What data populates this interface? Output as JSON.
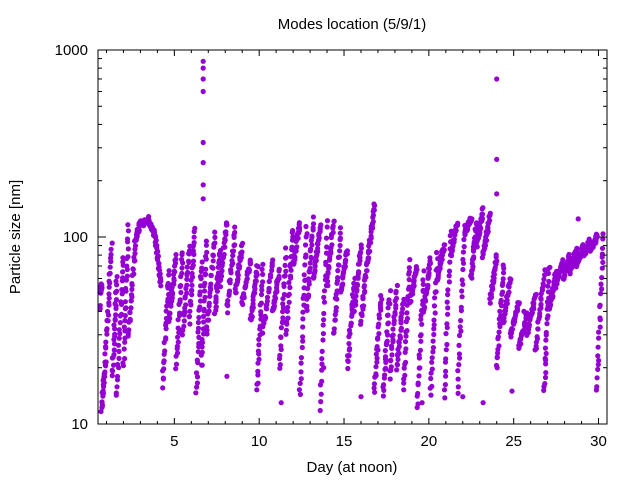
{
  "chart_data": {
    "type": "scatter",
    "title": "Modes location (5/9/1)",
    "xlabel": "Day (at noon)",
    "ylabel": "Particle size [nm]",
    "xlim": [
      0.5,
      30.5
    ],
    "ylim": [
      10,
      1000
    ],
    "yscale": "log",
    "grid": false,
    "legend": "none",
    "marker_color": "#9400d3",
    "x_ticks": [
      5,
      10,
      15,
      20,
      25,
      30
    ],
    "x_tick_labels": [
      "5",
      "10",
      "15",
      "20",
      "25",
      "30"
    ],
    "y_ticks": [
      10,
      100,
      1000
    ],
    "y_tick_labels": [
      "10",
      "100",
      "1000"
    ],
    "segments": [
      [
        0.5,
        30,
        0.62,
        45
      ],
      [
        0.62,
        50,
        0.7,
        55
      ],
      [
        0.7,
        12,
        0.95,
        22
      ],
      [
        0.95,
        24,
        1.3,
        90
      ],
      [
        1.35,
        18,
        1.6,
        60
      ],
      [
        1.6,
        14,
        2.0,
        80
      ],
      [
        2.0,
        20,
        2.3,
        115
      ],
      [
        2.3,
        30,
        2.7,
        90
      ],
      [
        2.7,
        95,
        3.0,
        120
      ],
      [
        3.0,
        115,
        3.5,
        125
      ],
      [
        3.5,
        120,
        3.9,
        100
      ],
      [
        3.9,
        95,
        4.2,
        55
      ],
      [
        4.3,
        16,
        4.7,
        65
      ],
      [
        4.7,
        35,
        5.1,
        80
      ],
      [
        5.1,
        20,
        5.5,
        85
      ],
      [
        5.5,
        30,
        5.9,
        90
      ],
      [
        5.9,
        35,
        6.2,
        110
      ],
      [
        6.3,
        15,
        6.6,
        75
      ],
      [
        6.6,
        20,
        6.9,
        95
      ],
      [
        6.9,
        30,
        7.4,
        105
      ],
      [
        7.4,
        40,
        7.7,
        85
      ],
      [
        7.7,
        55,
        8.1,
        120
      ],
      [
        8.1,
        40,
        8.6,
        110
      ],
      [
        8.6,
        50,
        9.0,
        90
      ],
      [
        9.0,
        45,
        9.5,
        75
      ],
      [
        9.5,
        35,
        9.9,
        70
      ],
      [
        9.9,
        15,
        10.2,
        70
      ],
      [
        10.2,
        30,
        10.8,
        75
      ],
      [
        10.8,
        40,
        11.2,
        65
      ],
      [
        11.2,
        20,
        11.6,
        85
      ],
      [
        11.6,
        30,
        12.0,
        110
      ],
      [
        12.0,
        70,
        12.4,
        120
      ],
      [
        12.4,
        14,
        12.8,
        115
      ],
      [
        12.8,
        40,
        13.2,
        125
      ],
      [
        13.2,
        60,
        13.6,
        115
      ],
      [
        13.6,
        12,
        14.0,
        120
      ],
      [
        14.0,
        55,
        14.4,
        125
      ],
      [
        14.4,
        30,
        14.8,
        110
      ],
      [
        14.8,
        50,
        15.2,
        85
      ],
      [
        15.2,
        20,
        15.6,
        60
      ],
      [
        15.6,
        40,
        16.0,
        90
      ],
      [
        16.0,
        35,
        16.4,
        80
      ],
      [
        16.4,
        75,
        16.8,
        150
      ],
      [
        16.8,
        15,
        17.2,
        50
      ],
      [
        17.3,
        14,
        17.7,
        50
      ],
      [
        17.7,
        18,
        18.1,
        55
      ],
      [
        18.1,
        20,
        18.5,
        45
      ],
      [
        18.5,
        15,
        18.9,
        75
      ],
      [
        18.9,
        45,
        19.3,
        70
      ],
      [
        19.3,
        12,
        19.7,
        65
      ],
      [
        19.7,
        40,
        20.1,
        75
      ],
      [
        20.1,
        14,
        20.5,
        80
      ],
      [
        20.5,
        60,
        20.9,
        90
      ],
      [
        20.9,
        14,
        21.3,
        110
      ],
      [
        21.3,
        80,
        21.7,
        120
      ],
      [
        21.7,
        15,
        22.1,
        115
      ],
      [
        22.1,
        105,
        22.5,
        125
      ],
      [
        22.5,
        60,
        22.8,
        120
      ],
      [
        22.8,
        90,
        23.2,
        140
      ],
      [
        23.2,
        80,
        23.6,
        130
      ],
      [
        23.6,
        45,
        24.0,
        80
      ],
      [
        24.0,
        20,
        24.4,
        70
      ],
      [
        24.4,
        35,
        24.8,
        60
      ],
      [
        24.8,
        30,
        25.3,
        45
      ],
      [
        25.3,
        25,
        25.8,
        40
      ],
      [
        25.8,
        30,
        26.3,
        50
      ],
      [
        26.3,
        25,
        26.8,
        65
      ],
      [
        26.8,
        15,
        27.1,
        70
      ],
      [
        27.1,
        40,
        27.5,
        65
      ],
      [
        27.5,
        55,
        27.9,
        75
      ],
      [
        27.9,
        60,
        28.3,
        80
      ],
      [
        28.3,
        65,
        28.7,
        85
      ],
      [
        28.7,
        70,
        29.1,
        90
      ],
      [
        29.1,
        80,
        29.5,
        95
      ],
      [
        29.5,
        85,
        29.9,
        100
      ],
      [
        29.9,
        15,
        30.3,
        105
      ]
    ],
    "outliers": [
      [
        6.7,
        870
      ],
      [
        6.7,
        800
      ],
      [
        6.7,
        700
      ],
      [
        6.7,
        600
      ],
      [
        6.7,
        320
      ],
      [
        6.7,
        250
      ],
      [
        6.7,
        190
      ],
      [
        6.7,
        160
      ],
      [
        24.0,
        700
      ],
      [
        24.0,
        260
      ],
      [
        24.0,
        170
      ],
      [
        28.8,
        125
      ],
      [
        23.2,
        13
      ],
      [
        24.9,
        15
      ],
      [
        4.6,
        55
      ],
      [
        8.1,
        18
      ],
      [
        11.3,
        13
      ],
      [
        13.8,
        20
      ],
      [
        16.0,
        14
      ],
      [
        19.6,
        13
      ],
      [
        22.0,
        14
      ],
      [
        25.6,
        40
      ]
    ]
  }
}
